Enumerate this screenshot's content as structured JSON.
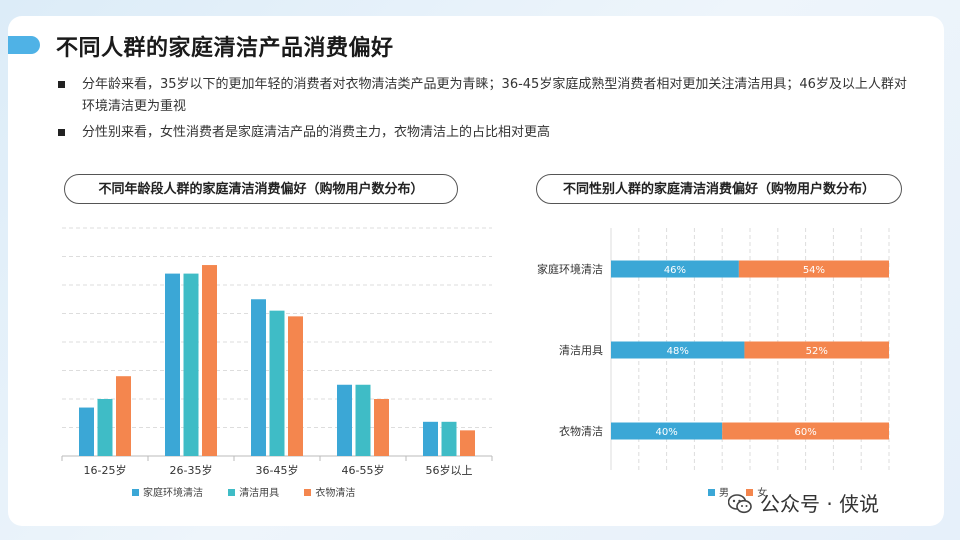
{
  "title": "不同人群的家庭清洁产品消费偏好",
  "bullets": [
    "分年龄来看，35岁以下的更加年轻的消费者对衣物清洁类产品更为青睐；36-45岁家庭成熟型消费者相对更加关注清洁用具；46岁及以上人群对环境清洁更为重视",
    "分性别来看，女性消费者是家庭清洁产品的消费主力，衣物清洁上的占比相对更高"
  ],
  "watermark": "公众号 · 侠说",
  "colors": {
    "blue": "#3ba7d6",
    "teal": "#3fbcc6",
    "orange": "#f4864e",
    "accent": "#4fb2e6"
  },
  "chart_data": [
    {
      "type": "bar",
      "title": "不同年龄段人群的家庭清洁消费偏好（购物用户数分布）",
      "categories": [
        "16-25岁",
        "26-35岁",
        "36-45岁",
        "46-55岁",
        "56岁以上"
      ],
      "series": [
        {
          "name": "家庭环境清洁",
          "color": "#3ba7d6",
          "values": [
            8.5,
            32,
            27.5,
            12.5,
            6
          ]
        },
        {
          "name": "清洁用具",
          "color": "#3fbcc6",
          "values": [
            10,
            32,
            25.5,
            12.5,
            6
          ]
        },
        {
          "name": "衣物清洁",
          "color": "#f4864e",
          "values": [
            14,
            33.5,
            24.5,
            10,
            4.5
          ]
        }
      ],
      "ylim": [
        0,
        40
      ],
      "y_tick_labels": false,
      "grid": true,
      "legend": "bottom"
    },
    {
      "type": "bar",
      "orientation": "horizontal",
      "stacked": true,
      "title": "不同性别人群的家庭清洁消费偏好（购物用户数分布）",
      "categories": [
        "家庭环境清洁",
        "清洁用具",
        "衣物清洁"
      ],
      "series": [
        {
          "name": "男",
          "color": "#3ba7d6",
          "values": [
            46,
            48,
            40
          ],
          "labels": [
            "46%",
            "48%",
            "40%"
          ]
        },
        {
          "name": "女",
          "color": "#f4864e",
          "values": [
            54,
            52,
            60
          ],
          "labels": [
            "54%",
            "52%",
            "60%"
          ]
        }
      ],
      "xlim": [
        0,
        100
      ],
      "grid": true,
      "legend": "bottom"
    }
  ]
}
